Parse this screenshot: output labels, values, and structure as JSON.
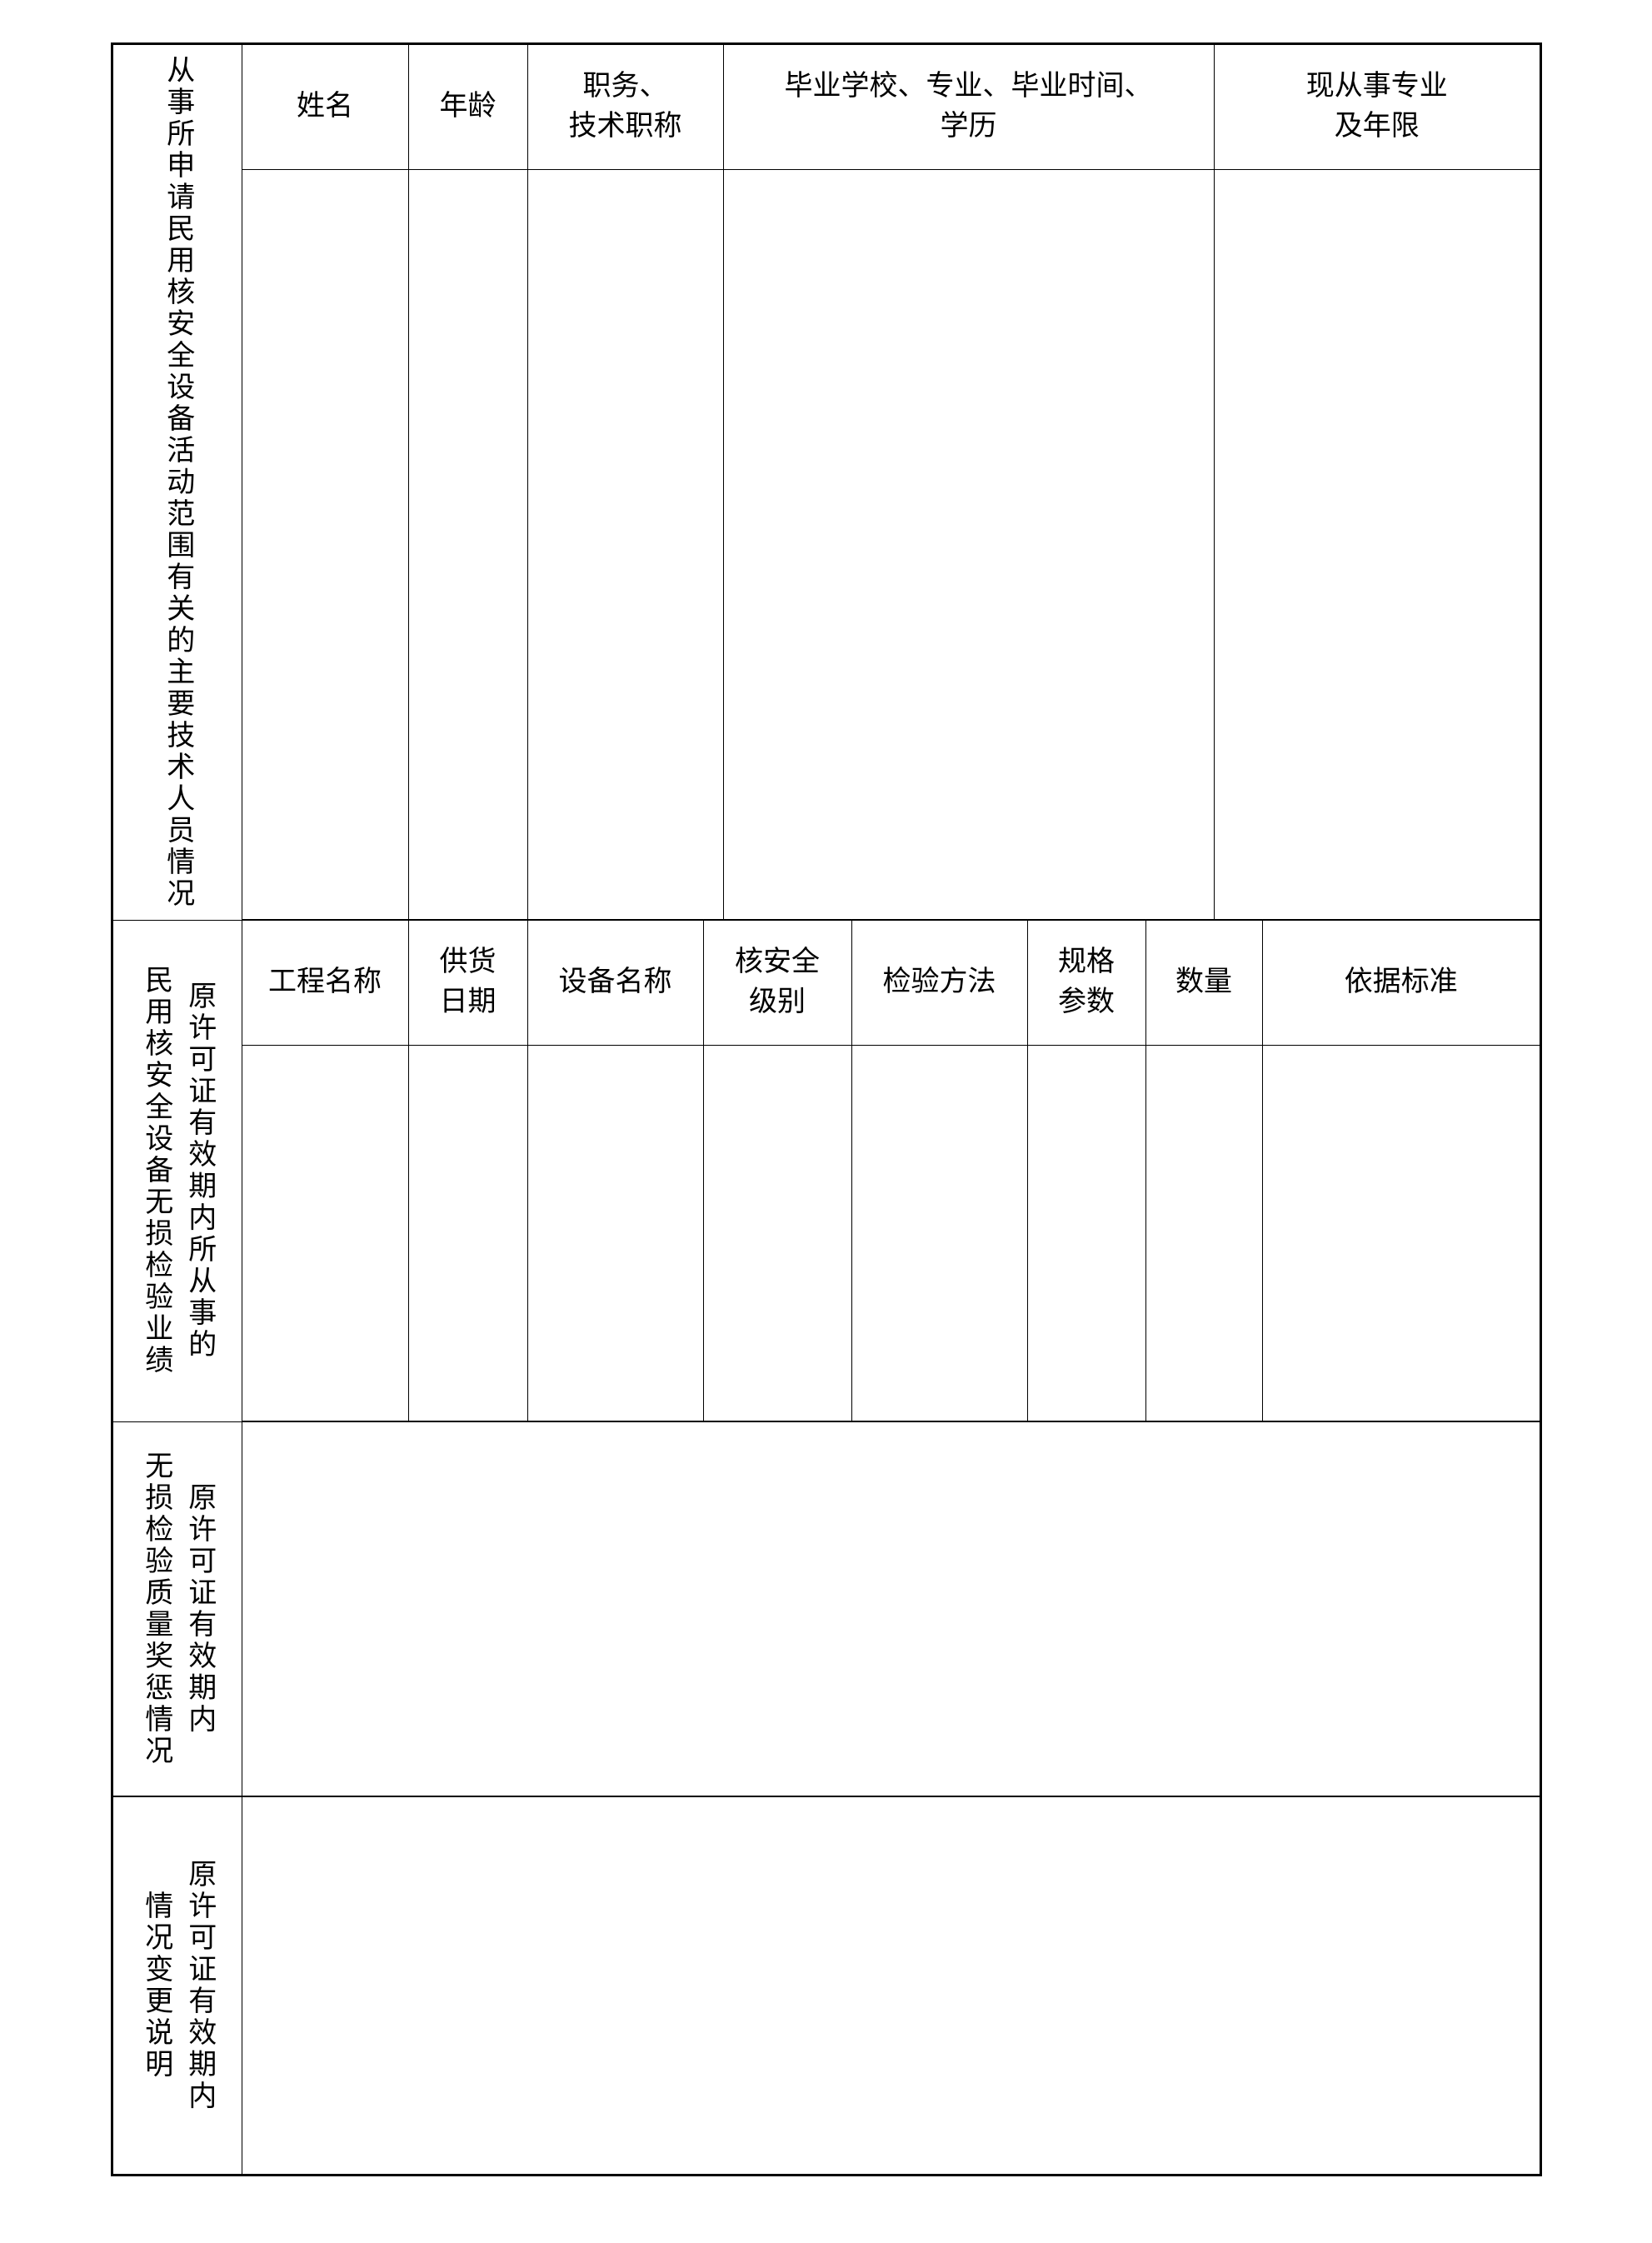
{
  "section1": {
    "label": [
      "从事所申请民用核安全设备活动范围有关的主要技术人员情况"
    ],
    "headers": [
      [
        "姓名"
      ],
      [
        "年龄"
      ],
      [
        "职务、",
        "技术职称"
      ],
      [
        "毕业学校、专业、毕业时间、",
        "学历"
      ],
      [
        "现从事专业",
        "及年限"
      ]
    ]
  },
  "section2": {
    "label": [
      "原许可证有效期内所从事的",
      "民用核安全设备无损检验业绩"
    ],
    "headers": [
      [
        "工程名称"
      ],
      [
        "供货",
        "日期"
      ],
      [
        "设备名称"
      ],
      [
        "核安全",
        "级别"
      ],
      [
        "检验方法"
      ],
      [
        "规格",
        "参数"
      ],
      [
        "数量"
      ],
      [
        "依据标准"
      ]
    ]
  },
  "section3": {
    "label": [
      "原许可证有效期内",
      "无损检验质量奖惩情况"
    ]
  },
  "section4": {
    "label": [
      "原许可证有效期内",
      "情况变更说明"
    ]
  }
}
